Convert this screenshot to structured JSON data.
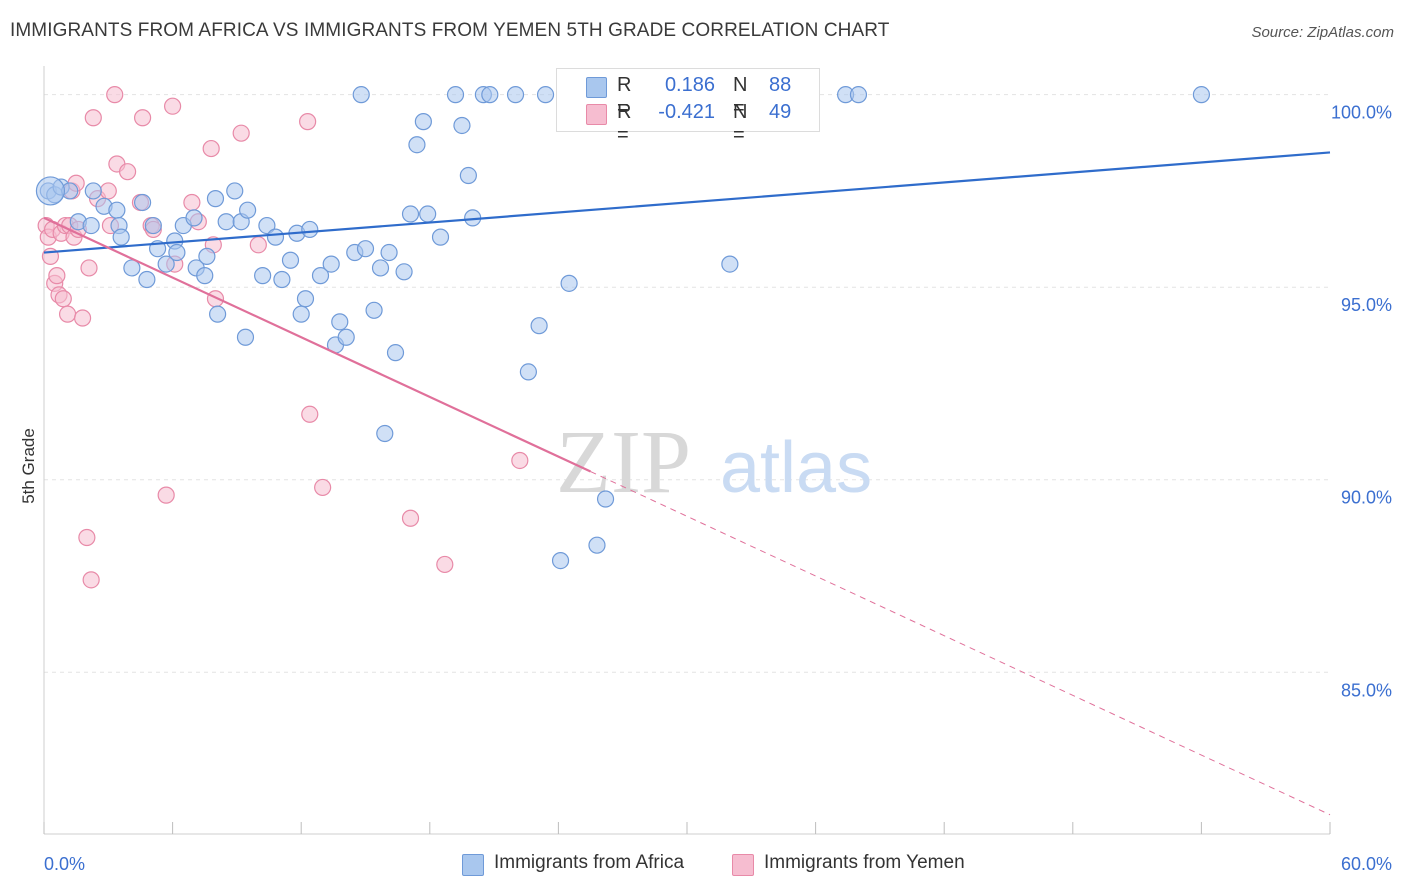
{
  "title": "IMMIGRANTS FROM AFRICA VS IMMIGRANTS FROM YEMEN 5TH GRADE CORRELATION CHART",
  "source": "Source: ZipAtlas.com",
  "watermark": {
    "part1": "ZIP",
    "part2": "atlas"
  },
  "legend": {
    "rows": [
      {
        "r_label": "R =",
        "r_value": "0.186",
        "n_label": "N =",
        "n_value": "88"
      },
      {
        "r_label": "R =",
        "r_value": "-0.421",
        "n_label": "N =",
        "n_value": "49"
      }
    ]
  },
  "bottom_legend": [
    "Immigrants from Africa",
    "Immigrants from Yemen"
  ],
  "colors": {
    "africa_fill": "#a9c7ee",
    "africa_stroke": "#6f9ad8",
    "africa_line": "#2f6ccb",
    "yemen_fill": "#f6bdd0",
    "yemen_stroke": "#e88aa8",
    "yemen_line": "#e0709a",
    "tick_text": "#3b6fd0",
    "grid": "#e3e3e3"
  },
  "chart_data": {
    "type": "scatter",
    "ylabel": "5th Grade",
    "xlim": [
      0,
      60
    ],
    "ylim": [
      80.8,
      100.9
    ],
    "x_ticks": [
      0,
      6,
      12,
      18,
      24,
      30,
      36,
      42,
      48,
      54,
      60
    ],
    "x_tick_labels": [
      "0.0%",
      "60.0%"
    ],
    "y_ticks": [
      100,
      95,
      90,
      85
    ],
    "y_tick_labels": [
      "100.0%",
      "95.0%",
      "90.0%",
      "85.0%"
    ],
    "grid": true,
    "series": [
      {
        "name": "Immigrants from Africa",
        "color": "#a9c7ee",
        "trend": {
          "x1": 0,
          "y1": 95.9,
          "x2": 60,
          "y2": 98.5,
          "solid_to_x": 60
        },
        "points": [
          [
            0.2,
            97.5
          ],
          [
            0.5,
            97.4
          ],
          [
            0.8,
            97.6
          ],
          [
            1.2,
            97.5
          ],
          [
            1.6,
            96.7
          ],
          [
            2.3,
            97.5
          ],
          [
            2.2,
            96.6
          ],
          [
            2.8,
            97.1
          ],
          [
            3.4,
            97.0
          ],
          [
            3.5,
            96.6
          ],
          [
            3.6,
            96.3
          ],
          [
            4.1,
            95.5
          ],
          [
            4.6,
            97.2
          ],
          [
            4.8,
            95.2
          ],
          [
            5.1,
            96.6
          ],
          [
            5.3,
            96.0
          ],
          [
            5.7,
            95.6
          ],
          [
            6.1,
            96.2
          ],
          [
            6.2,
            95.9
          ],
          [
            6.5,
            96.6
          ],
          [
            7.1,
            95.5
          ],
          [
            7.0,
            96.8
          ],
          [
            7.5,
            95.3
          ],
          [
            7.6,
            95.8
          ],
          [
            8.0,
            97.3
          ],
          [
            8.1,
            94.3
          ],
          [
            8.5,
            96.7
          ],
          [
            8.9,
            97.5
          ],
          [
            9.2,
            96.7
          ],
          [
            9.4,
            93.7
          ],
          [
            9.5,
            97.0
          ],
          [
            10.2,
            95.3
          ],
          [
            10.4,
            96.6
          ],
          [
            10.8,
            96.3
          ],
          [
            11.1,
            95.2
          ],
          [
            11.5,
            95.7
          ],
          [
            11.8,
            96.4
          ],
          [
            12.0,
            94.3
          ],
          [
            12.2,
            94.7
          ],
          [
            12.4,
            96.5
          ],
          [
            12.9,
            95.3
          ],
          [
            13.4,
            95.6
          ],
          [
            13.6,
            93.5
          ],
          [
            13.8,
            94.1
          ],
          [
            14.1,
            93.7
          ],
          [
            14.5,
            95.9
          ],
          [
            14.8,
            100.0
          ],
          [
            15.0,
            96.0
          ],
          [
            15.4,
            94.4
          ],
          [
            15.7,
            95.5
          ],
          [
            15.9,
            91.2
          ],
          [
            16.1,
            95.9
          ],
          [
            16.4,
            93.3
          ],
          [
            16.8,
            95.4
          ],
          [
            17.1,
            96.9
          ],
          [
            17.4,
            98.7
          ],
          [
            17.7,
            99.3
          ],
          [
            17.9,
            96.9
          ],
          [
            18.5,
            96.3
          ],
          [
            19.2,
            100.0
          ],
          [
            19.5,
            99.2
          ],
          [
            19.8,
            97.9
          ],
          [
            20.0,
            96.8
          ],
          [
            20.5,
            100.0
          ],
          [
            20.8,
            100.0
          ],
          [
            22.0,
            100.0
          ],
          [
            22.6,
            92.8
          ],
          [
            23.1,
            94.0
          ],
          [
            23.4,
            100.0
          ],
          [
            24.1,
            87.9
          ],
          [
            24.5,
            95.1
          ],
          [
            24.8,
            100.0
          ],
          [
            25.8,
            88.3
          ],
          [
            26.2,
            89.5
          ],
          [
            29.5,
            100.0
          ],
          [
            31.1,
            100.0
          ],
          [
            32.0,
            95.6
          ],
          [
            33.2,
            100.0
          ],
          [
            33.8,
            100.0
          ],
          [
            34.9,
            100.0
          ],
          [
            37.4,
            100.0
          ],
          [
            38.0,
            100.0
          ],
          [
            54.0,
            100.0
          ]
        ]
      },
      {
        "name": "Immigrants from Yemen",
        "color": "#f6bdd0",
        "trend": {
          "x1": 0,
          "y1": 96.8,
          "x2": 60,
          "y2": 81.3,
          "solid_to_x": 25.5
        },
        "points": [
          [
            0.1,
            96.6
          ],
          [
            0.2,
            96.3
          ],
          [
            0.3,
            95.8
          ],
          [
            0.4,
            96.5
          ],
          [
            0.5,
            95.1
          ],
          [
            0.6,
            95.3
          ],
          [
            0.7,
            94.8
          ],
          [
            0.8,
            96.4
          ],
          [
            0.9,
            94.7
          ],
          [
            1.0,
            96.6
          ],
          [
            1.1,
            94.3
          ],
          [
            1.2,
            96.6
          ],
          [
            1.3,
            97.5
          ],
          [
            1.4,
            96.3
          ],
          [
            1.5,
            97.7
          ],
          [
            1.6,
            96.5
          ],
          [
            1.8,
            94.2
          ],
          [
            2.0,
            88.5
          ],
          [
            2.1,
            95.5
          ],
          [
            2.2,
            87.4
          ],
          [
            2.3,
            99.4
          ],
          [
            2.5,
            97.3
          ],
          [
            3.0,
            97.5
          ],
          [
            3.1,
            96.6
          ],
          [
            3.3,
            100.0
          ],
          [
            3.4,
            98.2
          ],
          [
            3.9,
            98.0
          ],
          [
            4.5,
            97.2
          ],
          [
            4.6,
            99.4
          ],
          [
            5.0,
            96.6
          ],
          [
            5.1,
            96.5
          ],
          [
            5.7,
            89.6
          ],
          [
            6.0,
            99.7
          ],
          [
            6.1,
            95.6
          ],
          [
            6.9,
            97.2
          ],
          [
            7.2,
            96.7
          ],
          [
            7.8,
            98.6
          ],
          [
            7.9,
            96.1
          ],
          [
            8.0,
            94.7
          ],
          [
            9.2,
            99.0
          ],
          [
            10.0,
            96.1
          ],
          [
            12.3,
            99.3
          ],
          [
            12.4,
            91.7
          ],
          [
            13.0,
            89.8
          ],
          [
            17.1,
            89.0
          ],
          [
            18.7,
            87.8
          ],
          [
            22.2,
            90.5
          ]
        ]
      }
    ]
  }
}
